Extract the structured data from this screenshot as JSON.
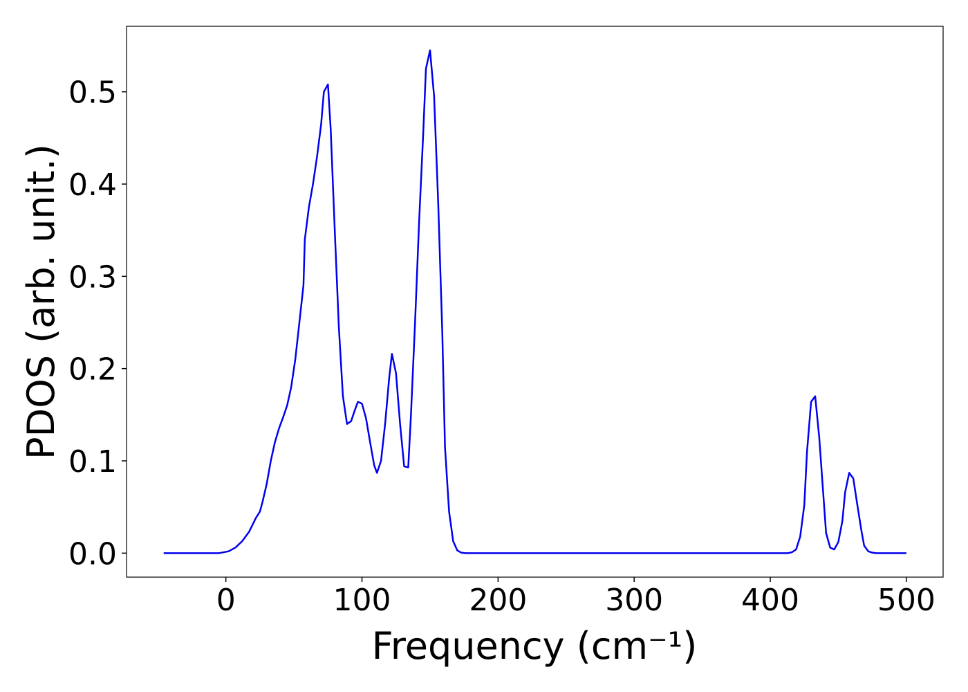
{
  "chart_data": {
    "type": "line",
    "xlabel": "Frequency (cm⁻¹)",
    "ylabel": "PDOS (arb. unit.)",
    "x": [
      -45.7,
      -5,
      2,
      7,
      12,
      17,
      22,
      25,
      27,
      30,
      33,
      36,
      39,
      42,
      45,
      48,
      51,
      54,
      57,
      58,
      61,
      64,
      67,
      70,
      72,
      75,
      77,
      80,
      83,
      86,
      89,
      92,
      95,
      97,
      100,
      103,
      106,
      109,
      111,
      114,
      117,
      120,
      122,
      125,
      128,
      131,
      134,
      136,
      139,
      142,
      145,
      147,
      150,
      153,
      156,
      159,
      161,
      164,
      167,
      170,
      173,
      176,
      413,
      416,
      419,
      422,
      425,
      427,
      430,
      433,
      436,
      439,
      441,
      444,
      447,
      450,
      453,
      455,
      458,
      461,
      464,
      467,
      469,
      472,
      475,
      478,
      500
    ],
    "series": [
      {
        "name": "PDOS",
        "color": "#0000ee",
        "values": [
          0,
          0,
          0.002,
          0.006,
          0.013,
          0.023,
          0.038,
          0.045,
          0.056,
          0.075,
          0.1,
          0.12,
          0.135,
          0.147,
          0.16,
          0.18,
          0.21,
          0.25,
          0.29,
          0.34,
          0.375,
          0.4,
          0.43,
          0.465,
          0.5,
          0.508,
          0.46,
          0.35,
          0.245,
          0.17,
          0.14,
          0.143,
          0.156,
          0.164,
          0.162,
          0.146,
          0.12,
          0.095,
          0.087,
          0.1,
          0.14,
          0.19,
          0.216,
          0.195,
          0.14,
          0.094,
          0.093,
          0.15,
          0.25,
          0.36,
          0.455,
          0.525,
          0.545,
          0.495,
          0.38,
          0.24,
          0.115,
          0.045,
          0.013,
          0.003,
          0.0005,
          0,
          0,
          0.001,
          0.004,
          0.018,
          0.052,
          0.11,
          0.164,
          0.17,
          0.125,
          0.063,
          0.022,
          0.006,
          0.004,
          0.012,
          0.035,
          0.066,
          0.087,
          0.081,
          0.052,
          0.024,
          0.008,
          0.002,
          0.0005,
          0,
          0
        ]
      }
    ],
    "xlim": [
      -73,
      527
    ],
    "ylim": [
      -0.026,
      0.571
    ],
    "xticks": [
      0,
      100,
      200,
      300,
      400,
      500
    ],
    "yticks": [
      {
        "value": 0,
        "label": "0.0"
      },
      {
        "value": 0.1,
        "label": "0.1"
      },
      {
        "value": 0.2,
        "label": "0.2"
      },
      {
        "value": 0.3,
        "label": "0.3"
      },
      {
        "value": 0.4,
        "label": "0.4"
      },
      {
        "value": 0.5,
        "label": "0.5"
      }
    ],
    "grid": false
  }
}
